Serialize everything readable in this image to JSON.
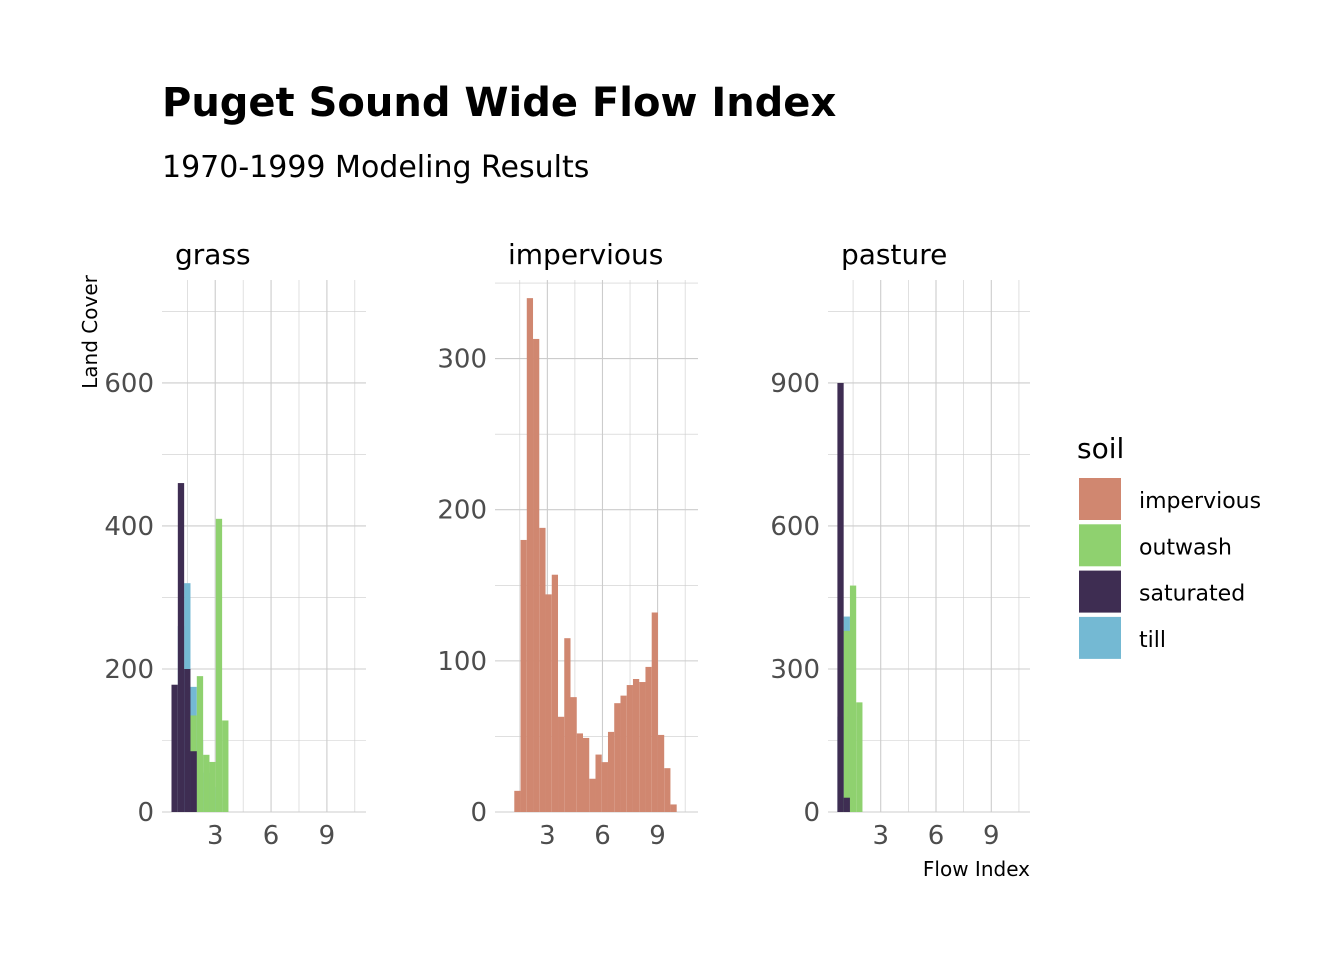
{
  "chart_data": {
    "type": "bar",
    "title": "Puget Sound Wide Flow Index",
    "subtitle": "1970-1999 Modeling Results",
    "xlabel": "Flow Index",
    "ylabel": "Land Cover",
    "legend": {
      "title": "soil",
      "placement": "right",
      "items": [
        {
          "name": "impervious",
          "color": "#d08770"
        },
        {
          "name": "outwash",
          "color": "#8fd16f"
        },
        {
          "name": "saturated",
          "color": "#3e2d52"
        },
        {
          "name": "till",
          "color": "#74b9d3"
        }
      ]
    },
    "bin_width": 0.34,
    "grid": true,
    "panels": [
      {
        "label": "grass",
        "xlim": [
          0.14,
          11.1
        ],
        "ylim": [
          0,
          744
        ],
        "x_ticks": [
          3,
          6,
          9
        ],
        "y_ticks": [
          0,
          200,
          400,
          600
        ],
        "x_tick_labels": [
          "3",
          "6",
          "9"
        ],
        "y_tick_labels": [
          "0",
          "200",
          "400",
          "600"
        ],
        "series": [
          {
            "name": "till",
            "x0": [
              0.65,
              0.99,
              1.33,
              1.67,
              2.01,
              2.35,
              2.69,
              3.03
            ],
            "values": [
              0,
              260,
              320,
              175,
              100,
              55,
              35,
              20
            ]
          },
          {
            "name": "outwash",
            "x0": [
              0.65,
              0.99,
              1.33,
              1.67,
              2.01,
              2.35,
              2.69,
              3.03,
              3.37
            ],
            "values": [
              0,
              0,
              0,
              135,
              190,
              80,
              70,
              410,
              128
            ]
          },
          {
            "name": "saturated",
            "x0": [
              0.65,
              0.99,
              1.33,
              1.67,
              2.01,
              2.35,
              2.69
            ],
            "values": [
              178,
              460,
              200,
              85,
              0,
              0,
              0
            ]
          }
        ]
      },
      {
        "label": "impervious",
        "xlim": [
          0.15,
          11.2
        ],
        "ylim": [
          0,
          352
        ],
        "x_ticks": [
          3,
          6,
          9
        ],
        "y_ticks": [
          0,
          100,
          200,
          300
        ],
        "x_tick_labels": [
          "3",
          "6",
          "9"
        ],
        "y_tick_labels": [
          "0",
          "100",
          "200",
          "300"
        ],
        "series": [
          {
            "name": "impervious",
            "x0_start": 1.2,
            "step": 0.34,
            "values": [
              14,
              180,
              340,
              313,
              188,
              144,
              157,
              63,
              115,
              76,
              52,
              49,
              22,
              38,
              33,
              53,
              72,
              77,
              84,
              88,
              86,
              96,
              132,
              51,
              29,
              5
            ]
          }
        ]
      },
      {
        "label": "pasture",
        "xlim": [
          0.14,
          11.1
        ],
        "ylim": [
          0,
          1116
        ],
        "x_ticks": [
          3,
          6,
          9
        ],
        "y_ticks": [
          0,
          300,
          600,
          900
        ],
        "x_tick_labels": [
          "3",
          "6",
          "9"
        ],
        "y_tick_labels": [
          "0",
          "300",
          "600",
          "900"
        ],
        "series": [
          {
            "name": "till",
            "x0": [
              0.65,
              0.99
            ],
            "values": [
              200,
              410
            ]
          },
          {
            "name": "outwash",
            "x0": [
              0.99,
              1.33,
              1.67
            ],
            "values": [
              380,
              475,
              230
            ]
          },
          {
            "name": "saturated",
            "x0": [
              0.65,
              0.99
            ],
            "values": [
              900,
              30
            ]
          }
        ]
      }
    ]
  }
}
